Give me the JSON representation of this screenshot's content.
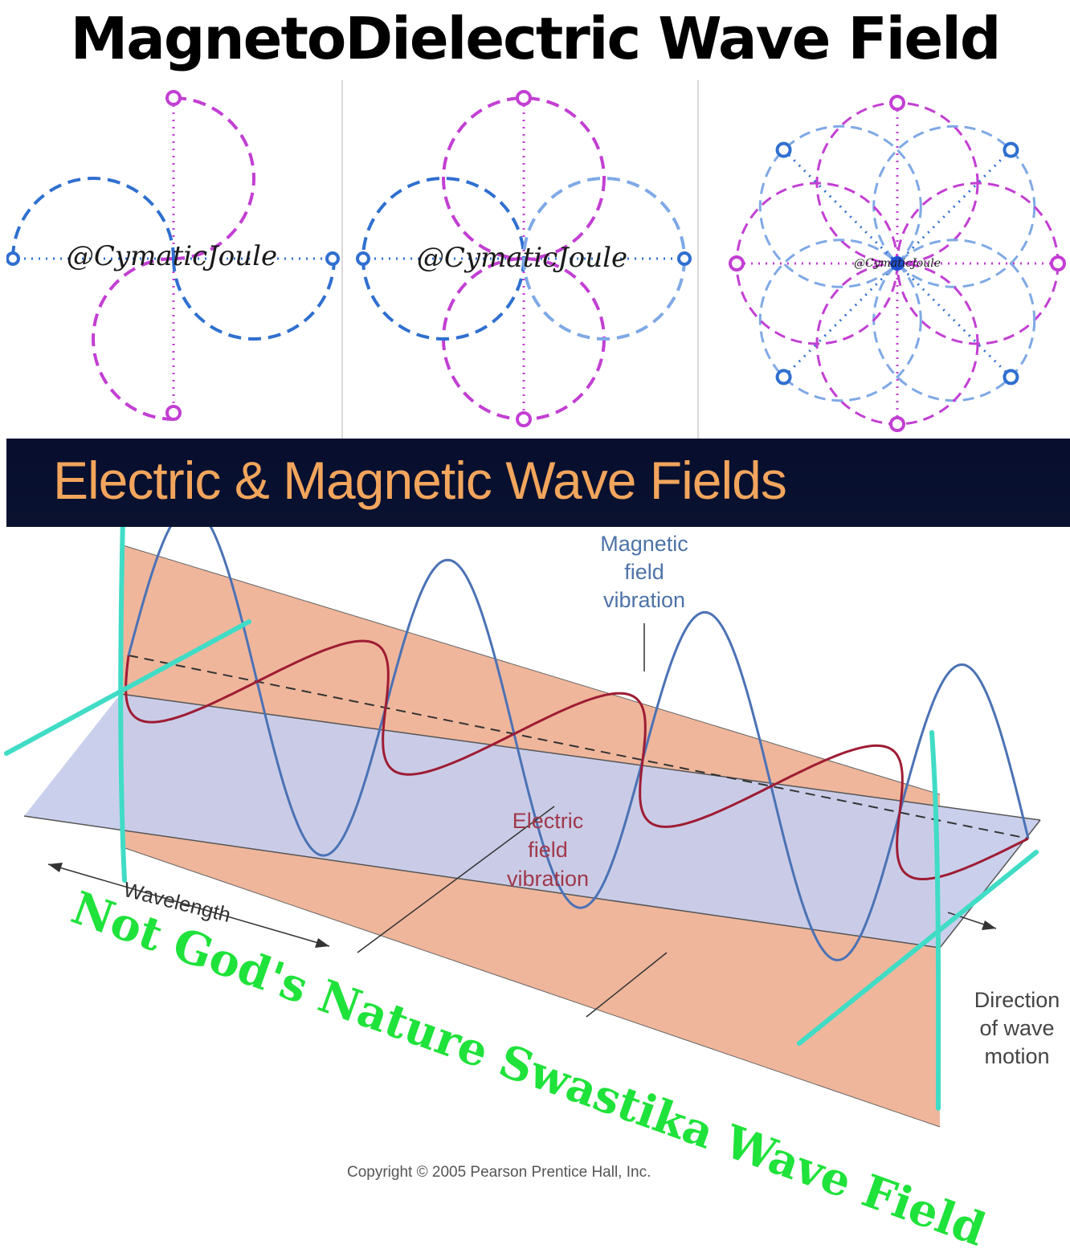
{
  "header": {
    "title": "MagnetoDielectric Wave Field"
  },
  "panels": [
    {
      "watermark": "@CymaticJoule"
    },
    {
      "watermark": "@CymaticJoule"
    },
    {
      "watermark": "@CymaticJoule"
    }
  ],
  "banner": {
    "title": "Electric & Magnetic Wave Fields"
  },
  "diagram": {
    "magnetic_label": [
      "Magnetic",
      "field",
      "vibration"
    ],
    "electric_label": [
      "Electric",
      "field",
      "vibration"
    ],
    "direction_label": [
      "Direction",
      "of wave",
      "motion"
    ],
    "wavelength_label": "Wavelength",
    "copyright": "Copyright © 2005 Pearson Prentice Hall, Inc."
  },
  "overlay": {
    "slogan": "Not God's Nature Swastika Wave Field"
  },
  "colors": {
    "magenta": "#c23fd3",
    "blue": "#2f6fd0",
    "light_blue": "#7fa9e6",
    "banner_text": "#f2a55c",
    "magnetic_sheet": "#efb69c",
    "electric_sheet": "#c7cdeb",
    "magnetic_wave": "#4b72b5",
    "electric_wave": "#9e1c34",
    "marker": "#40dcc6",
    "slogan": "#1fe23a"
  }
}
